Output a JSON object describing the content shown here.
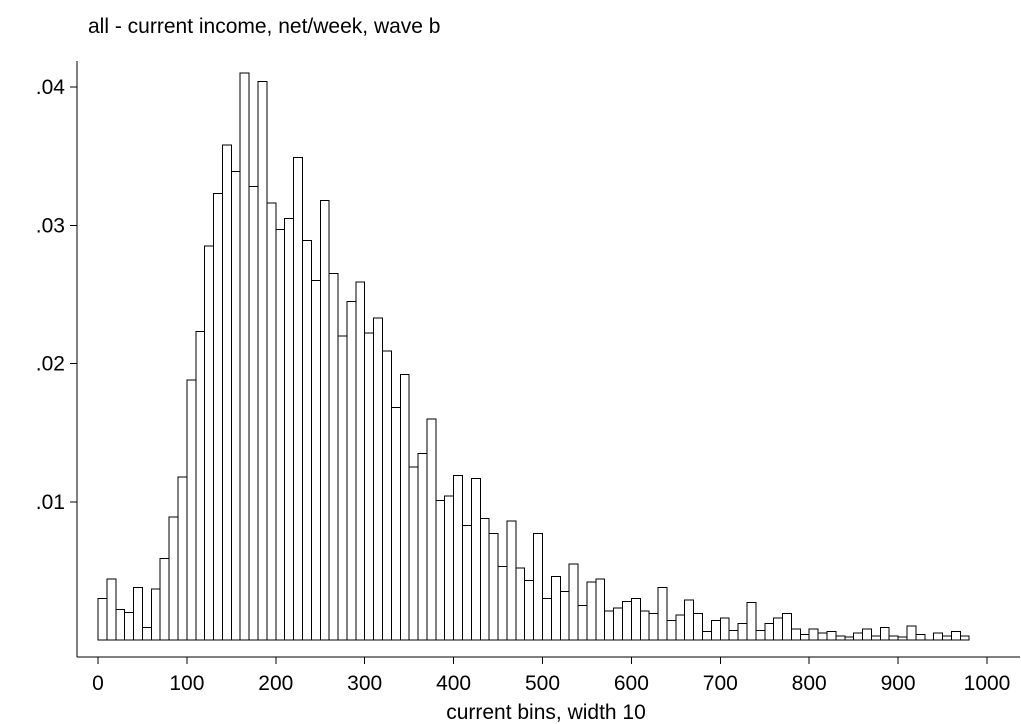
{
  "chart_data": {
    "type": "bar",
    "title": "all - current income, net/week, wave b",
    "xlabel": "current bins, width 10",
    "ylabel": "",
    "bin_width": 10,
    "x_start": 0,
    "xlim": [
      -20,
      1020
    ],
    "ylim": [
      -0.0015,
      0.042
    ],
    "x_ticks": [
      {
        "value": 0,
        "label": "0"
      },
      {
        "value": 100,
        "label": "100"
      },
      {
        "value": 200,
        "label": "200"
      },
      {
        "value": 300,
        "label": "300"
      },
      {
        "value": 400,
        "label": "400"
      },
      {
        "value": 500,
        "label": "500"
      },
      {
        "value": 600,
        "label": "600"
      },
      {
        "value": 700,
        "label": "700"
      },
      {
        "value": 800,
        "label": "800"
      },
      {
        "value": 900,
        "label": "900"
      },
      {
        "value": 1000,
        "label": "1000"
      }
    ],
    "y_ticks": [
      {
        "value": 0.01,
        "label": ".01"
      },
      {
        "value": 0.02,
        "label": ".02"
      },
      {
        "value": 0.03,
        "label": ".03"
      },
      {
        "value": 0.04,
        "label": ".04"
      }
    ],
    "values": [
      0.003,
      0.0044,
      0.0022,
      0.002,
      0.0038,
      0.0009,
      0.0037,
      0.0059,
      0.0089,
      0.0118,
      0.0188,
      0.0223,
      0.0285,
      0.0323,
      0.0358,
      0.0339,
      0.041,
      0.0328,
      0.0404,
      0.0316,
      0.0297,
      0.0305,
      0.0349,
      0.0289,
      0.026,
      0.0318,
      0.0265,
      0.022,
      0.0245,
      0.0259,
      0.0222,
      0.0233,
      0.0209,
      0.0168,
      0.0192,
      0.0125,
      0.0135,
      0.016,
      0.0101,
      0.0104,
      0.0119,
      0.0083,
      0.0117,
      0.0088,
      0.0077,
      0.0053,
      0.0086,
      0.0052,
      0.0043,
      0.0077,
      0.003,
      0.0046,
      0.0035,
      0.0055,
      0.0025,
      0.0042,
      0.0044,
      0.0021,
      0.0023,
      0.0028,
      0.003,
      0.0021,
      0.0019,
      0.0038,
      0.0014,
      0.0018,
      0.0029,
      0.0019,
      0.0006,
      0.0014,
      0.0016,
      0.0007,
      0.0012,
      0.0027,
      0.0007,
      0.0012,
      0.0016,
      0.0019,
      0.0008,
      0.0004,
      0.0008,
      0.0005,
      0.0006,
      0.0003,
      0.0002,
      0.0005,
      0.0008,
      0.0003,
      0.0009,
      0.0003,
      0.0002,
      0.001,
      0.0004,
      0.0,
      0.0005,
      0.0003,
      0.0006,
      0.0003
    ],
    "bar_fill": "#ffffff",
    "bar_stroke": "#000000",
    "grid": false,
    "legend": "none"
  }
}
